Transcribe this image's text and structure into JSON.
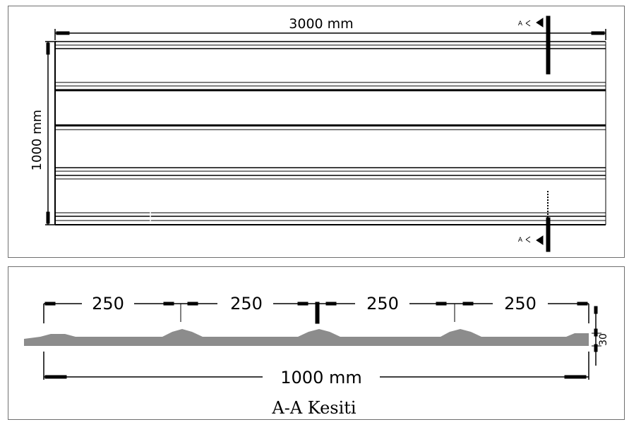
{
  "plan_view": {
    "width_label": "3000 mm",
    "height_label": "1000 mm",
    "section_mark_top": "A",
    "section_mark_bottom": "A"
  },
  "section_view": {
    "spacing_labels": [
      "250",
      "250",
      "250",
      "250"
    ],
    "total_label": "1000 mm",
    "height_label": "30",
    "title": "A-A Kesiti"
  }
}
